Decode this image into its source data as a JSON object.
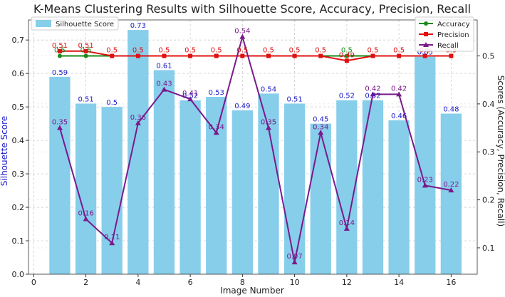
{
  "chart_data": {
    "type": "bar",
    "title": "K-Means Clustering Results with Silhouette Score, Accuracy, Precision, Recall",
    "xlabel": "Image Number",
    "ylabel_left": "Silhouette Score",
    "ylabel_right": "Scores (Accuracy, Precision, Recall)",
    "xlim": [
      -0.2,
      17.0
    ],
    "ylim_left": [
      0,
      0.76
    ],
    "ylim_right": [
      0.045,
      0.575
    ],
    "x_ticks": [
      0,
      2,
      4,
      6,
      8,
      10,
      12,
      14,
      16
    ],
    "y_ticks_left": [
      0.0,
      0.1,
      0.2,
      0.3,
      0.4,
      0.5,
      0.6,
      0.7
    ],
    "y_ticks_right": [
      0.1,
      0.2,
      0.3,
      0.4,
      0.5
    ],
    "grid": true,
    "x": [
      1,
      2,
      3,
      4,
      5,
      6,
      7,
      8,
      9,
      10,
      11,
      12,
      13,
      14,
      15,
      16
    ],
    "bars": {
      "name": "Silhouette Score",
      "color": "#87CEEB",
      "label_color": "#1a1acc",
      "values": [
        0.59,
        0.51,
        0.5,
        0.73,
        0.61,
        0.52,
        0.53,
        0.49,
        0.54,
        0.51,
        0.45,
        0.52,
        0.52,
        0.46,
        0.65,
        0.48
      ],
      "labels": [
        "0.59",
        "0.51",
        "0.5",
        "0.73",
        "0.61",
        "0.52",
        "0.53",
        "0.49",
        "0.54",
        "0.51",
        "0.45",
        "0.52",
        "0.52",
        "0.46",
        "0.65",
        "0.48"
      ]
    },
    "series": [
      {
        "name": "Accuracy",
        "color": "#1a8a1a",
        "marker": "circle",
        "values": [
          0.5,
          0.5,
          0.5,
          0.5,
          0.5,
          0.5,
          0.5,
          0.5,
          0.5,
          0.5,
          0.5,
          0.5,
          0.5,
          0.5,
          0.5,
          0.5
        ],
        "labels": [
          "0.5",
          "0.5",
          "",
          "",
          "",
          "",
          "",
          "",
          "",
          "",
          "",
          "0.5",
          "",
          "",
          "",
          ""
        ]
      },
      {
        "name": "Precision",
        "color": "#e01010",
        "marker": "square",
        "values": [
          0.51,
          0.51,
          0.5,
          0.5,
          0.5,
          0.5,
          0.5,
          0.5,
          0.5,
          0.5,
          0.5,
          0.49,
          0.5,
          0.5,
          0.5,
          0.5
        ],
        "labels": [
          "0.51",
          "0.51",
          "0.5",
          "0.5",
          "0.5",
          "0.5",
          "0.5",
          "0.5",
          "0.5",
          "0.5",
          "0.5",
          "0.49",
          "0.5",
          "0.5",
          "0.5",
          "0.5"
        ]
      },
      {
        "name": "Recall",
        "color": "#7a1a8a",
        "marker": "triangle",
        "values": [
          0.35,
          0.16,
          0.11,
          0.36,
          0.43,
          0.41,
          0.34,
          0.54,
          0.35,
          0.07,
          0.34,
          0.14,
          0.42,
          0.42,
          0.23,
          0.22
        ],
        "labels": [
          "0.35",
          "0.16",
          "0.11",
          "0.36",
          "0.43",
          "0.41",
          "0.34",
          "0.54",
          "0.35",
          "0.07",
          "0.34",
          "0.14",
          "0.42",
          "0.42",
          "0.23",
          "0.22"
        ]
      }
    ],
    "legend_left": {
      "position": "top-left",
      "entries": [
        "Silhouette Score"
      ]
    },
    "legend_right": {
      "position": "top-right",
      "entries": [
        "Accuracy",
        "Precision",
        "Recall"
      ]
    }
  }
}
